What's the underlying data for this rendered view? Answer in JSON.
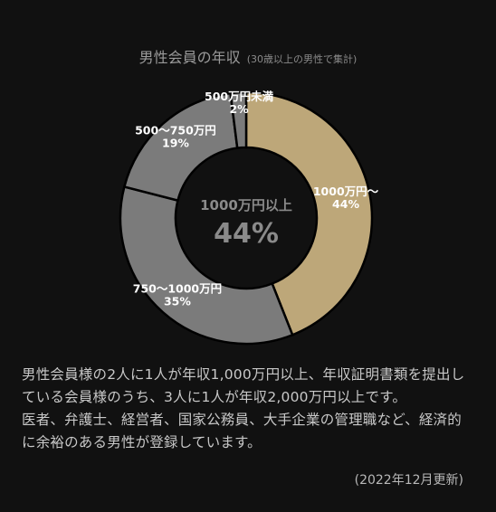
{
  "title": {
    "main": "男性会員の年収",
    "sub": "(30歳以上の男性で集計)"
  },
  "center": {
    "label": "1000万円以上",
    "value": "44%"
  },
  "chart_data": {
    "type": "pie",
    "title": "男性会員の年収",
    "subtitle": "(30歳以上の男性で集計)",
    "categories": [
      "1000万円〜",
      "750〜1000万円",
      "500〜750万円",
      "500万円未満"
    ],
    "values": [
      44,
      35,
      19,
      2
    ],
    "display_labels": [
      [
        "1000万円〜",
        "44%"
      ],
      [
        "750〜1000万円",
        "35%"
      ],
      [
        "500〜750万円",
        "19%"
      ],
      [
        "500万円未満",
        "2%"
      ]
    ],
    "colors": [
      "#bda779",
      "#7b7b7b",
      "#7b7b7b",
      "#7b7b7b"
    ],
    "donut": true
  },
  "description": {
    "line1": "男性会員様の2人に1人が年収1,000万円以上、年収証明書類を提出している会員様のうち、3人に1人が年収2,000万円以上です。",
    "line2": "医者、弁護士、経営者、国家公務員、大手企業の管理職など、経済的に余裕のある男性が登録しています。"
  },
  "updated": "(2022年12月更新)"
}
